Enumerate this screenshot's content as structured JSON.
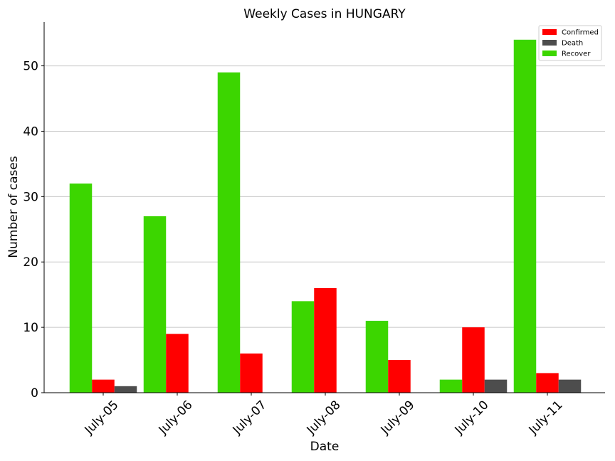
{
  "chart_data": {
    "type": "bar",
    "title": "Weekly Cases in HUNGARY",
    "xlabel": "Date",
    "ylabel": "Number of cases",
    "categories": [
      "July-05",
      "July-06",
      "July-07",
      "July-08",
      "July-09",
      "July-10",
      "July-11"
    ],
    "series": [
      {
        "name": "Recover",
        "color": "#3cd600",
        "values": [
          32,
          27,
          49,
          14,
          11,
          2,
          54
        ]
      },
      {
        "name": "Confirmed",
        "color": "#ff0000",
        "values": [
          2,
          9,
          6,
          16,
          5,
          10,
          3
        ]
      },
      {
        "name": "Death",
        "color": "#4d4d4d",
        "values": [
          1,
          0,
          0,
          0,
          0,
          2,
          2
        ]
      }
    ],
    "legend_order": [
      "Confirmed",
      "Death",
      "Recover"
    ],
    "yticks": [
      0,
      10,
      20,
      30,
      40,
      50
    ],
    "ylim": [
      0,
      56.7
    ],
    "grid": "horizontal",
    "legend_position": "top-right"
  }
}
